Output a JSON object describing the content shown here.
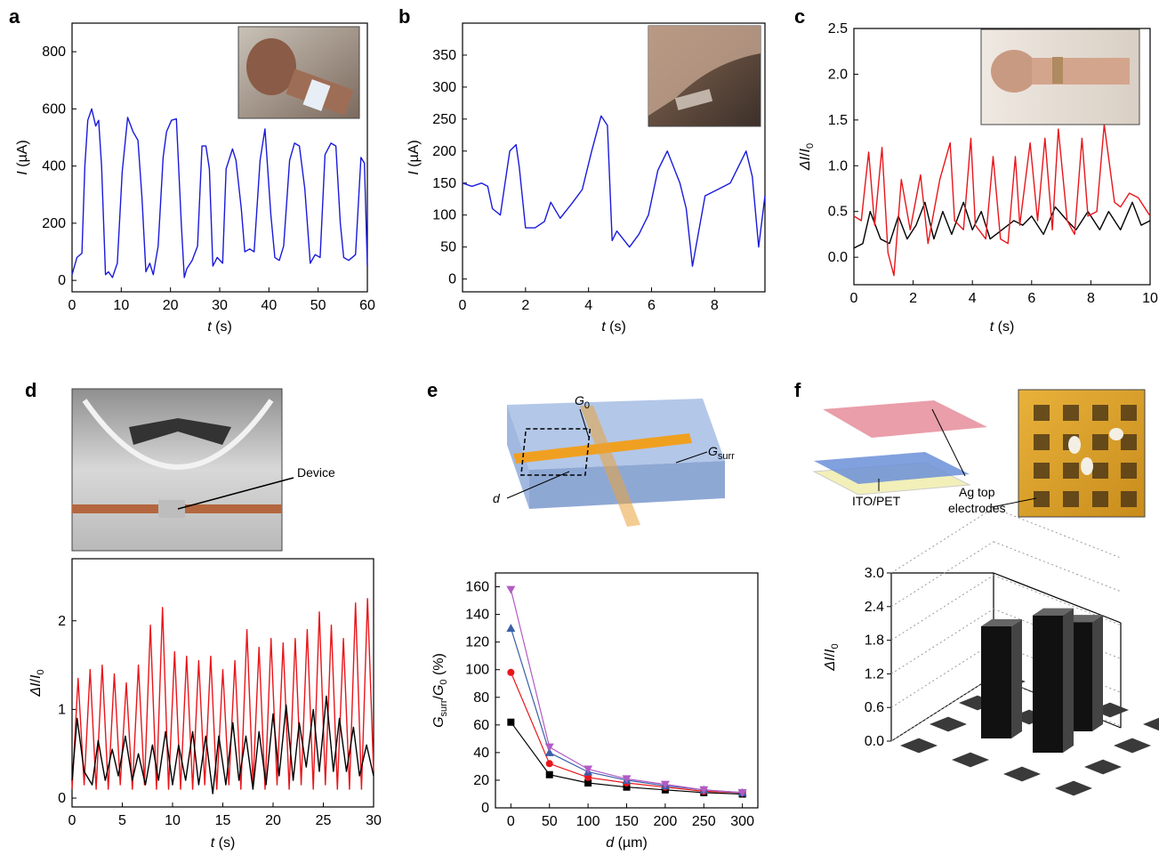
{
  "panel_labels": {
    "a": "a",
    "b": "b",
    "c": "c",
    "d": "d",
    "e": "e",
    "f": "f"
  },
  "annotations": {
    "d_device": "Device",
    "e_G0_main": "G",
    "e_G0_sub": "0",
    "e_Gsurr_main": "G",
    "e_Gsurr_sub": "surr",
    "e_d": "d",
    "f_ito": "ITO/PET",
    "f_ag_line1": "Ag top",
    "f_ag_line2": "electrodes"
  },
  "colors": {
    "blue": "#1a1adb",
    "red": "#e8161b",
    "black": "#000000",
    "purple": "#b25cc4",
    "steelblue": "#3b5ea8",
    "bar": "#111111"
  },
  "chart_data": [
    {
      "id": "a",
      "type": "line",
      "ylabel_main": "I",
      "ylabel_unit": " (µA)",
      "xlabel_main": "t",
      "xlabel_unit": " (s)",
      "xlim": [
        0,
        60
      ],
      "ylim": [
        -40,
        900
      ],
      "xticks": [
        "0",
        "10",
        "20",
        "30",
        "40",
        "50",
        "60"
      ],
      "xtick_values": [
        0,
        10,
        20,
        30,
        40,
        50,
        60
      ],
      "yticks": [
        "0",
        "200",
        "400",
        "600",
        "800"
      ],
      "ytick_values": [
        0,
        200,
        400,
        600,
        800
      ],
      "series": [
        {
          "color": "#1a1adb",
          "x": [
            0,
            1,
            2,
            2.6,
            3.2,
            4,
            4.8,
            5.4,
            6,
            6.8,
            7.4,
            8.2,
            9.2,
            10.2,
            11.3,
            12.4,
            13.4,
            14.2,
            15,
            15.8,
            16.5,
            17.5,
            18.5,
            19.2,
            20.2,
            21.2,
            22.2,
            22.8,
            23.3,
            24.4,
            25.5,
            26.4,
            27.2,
            27.9,
            28.6,
            29.5,
            30.6,
            31.3,
            32.6,
            33.3,
            34.4,
            35.1,
            36.1,
            37,
            38.2,
            39.2,
            40.4,
            41.2,
            42.1,
            43,
            44.2,
            45.2,
            46.2,
            47.3,
            48.4,
            49.4,
            50.4,
            51.4,
            52.6,
            53.6,
            54.5,
            55.2,
            56.2,
            57.6,
            58.7,
            59.4,
            60
          ],
          "y": [
            20,
            80,
            95,
            400,
            560,
            600,
            540,
            560,
            400,
            20,
            30,
            10,
            60,
            380,
            570,
            520,
            490,
            290,
            30,
            60,
            20,
            120,
            430,
            520,
            560,
            565,
            200,
            10,
            40,
            70,
            120,
            470,
            470,
            390,
            50,
            80,
            60,
            390,
            460,
            420,
            250,
            100,
            110,
            100,
            420,
            530,
            230,
            80,
            70,
            120,
            420,
            480,
            470,
            320,
            60,
            90,
            80,
            440,
            480,
            470,
            200,
            80,
            70,
            90,
            430,
            410,
            50
          ]
        }
      ]
    },
    {
      "id": "b",
      "type": "line",
      "ylabel_main": "I",
      "ylabel_unit": " (µA)",
      "xlabel_main": "t",
      "xlabel_unit": " (s)",
      "xlim": [
        0,
        9.6
      ],
      "ylim": [
        -20,
        400
      ],
      "xticks": [
        "0",
        "2",
        "4",
        "6",
        "8"
      ],
      "xtick_values": [
        0,
        2,
        4,
        6,
        8
      ],
      "yticks": [
        "0",
        "50",
        "100",
        "150",
        "200",
        "250",
        "300",
        "350"
      ],
      "ytick_values": [
        0,
        50,
        100,
        150,
        200,
        250,
        300,
        350
      ],
      "series": [
        {
          "color": "#1a1adb",
          "x": [
            0,
            0.3,
            0.6,
            0.8,
            0.95,
            1.2,
            1.5,
            1.7,
            1.8,
            2.0,
            2.3,
            2.6,
            2.8,
            3.1,
            3.5,
            3.8,
            4.1,
            4.4,
            4.6,
            4.75,
            4.9,
            5.3,
            5.6,
            5.9,
            6.2,
            6.5,
            6.9,
            7.1,
            7.3,
            7.7,
            8.1,
            8.5,
            8.8,
            9.0,
            9.2,
            9.4,
            9.6
          ],
          "y": [
            150,
            145,
            150,
            145,
            110,
            100,
            200,
            210,
            175,
            80,
            80,
            90,
            120,
            95,
            120,
            140,
            200,
            255,
            240,
            60,
            75,
            50,
            70,
            100,
            170,
            200,
            150,
            110,
            20,
            130,
            140,
            150,
            180,
            200,
            160,
            50,
            130
          ]
        }
      ]
    },
    {
      "id": "c",
      "type": "line",
      "ylabel_main": "ΔI",
      "ylabel_unit": "",
      "ylabel_sub": "0",
      "xlabel_main": "t",
      "xlabel_unit": " (s)",
      "xlim": [
        0,
        10
      ],
      "ylim": [
        -0.3,
        2.5
      ],
      "xticks": [
        "0",
        "2",
        "4",
        "6",
        "8",
        "10"
      ],
      "xtick_values": [
        0,
        2,
        4,
        6,
        8,
        10
      ],
      "yticks": [
        "0.0",
        "0.5",
        "1.0",
        "1.5",
        "2.0",
        "2.5"
      ],
      "ytick_values": [
        0,
        0.5,
        1,
        1.5,
        2,
        2.5
      ],
      "series": [
        {
          "color": "#000000",
          "x": [
            0,
            0.3,
            0.55,
            0.9,
            1.2,
            1.5,
            1.8,
            2.1,
            2.4,
            2.7,
            3.0,
            3.3,
            3.7,
            4.0,
            4.3,
            4.6,
            5.0,
            5.4,
            5.7,
            6.0,
            6.4,
            6.8,
            7.2,
            7.5,
            7.9,
            8.3,
            8.6,
            9.0,
            9.4,
            9.7,
            10
          ],
          "y": [
            0.1,
            0.15,
            0.5,
            0.2,
            0.15,
            0.45,
            0.2,
            0.35,
            0.6,
            0.2,
            0.5,
            0.25,
            0.6,
            0.3,
            0.5,
            0.2,
            0.3,
            0.4,
            0.35,
            0.45,
            0.25,
            0.55,
            0.4,
            0.3,
            0.5,
            0.3,
            0.5,
            0.3,
            0.6,
            0.35,
            0.4
          ]
        },
        {
          "color": "#e8161b",
          "x": [
            0,
            0.25,
            0.5,
            0.7,
            0.95,
            1.15,
            1.35,
            1.6,
            1.9,
            2.25,
            2.5,
            2.9,
            3.25,
            3.4,
            3.7,
            3.95,
            4.1,
            4.45,
            4.7,
            4.95,
            5.2,
            5.45,
            5.6,
            5.95,
            6.2,
            6.45,
            6.7,
            6.9,
            7.2,
            7.45,
            7.7,
            7.9,
            8.2,
            8.45,
            8.8,
            9.0,
            9.3,
            9.6,
            10
          ],
          "y": [
            0.45,
            0.4,
            1.15,
            0.35,
            1.2,
            0.05,
            -0.2,
            0.85,
            0.3,
            0.9,
            0.15,
            0.85,
            1.25,
            0.4,
            0.3,
            1.3,
            0.35,
            0.2,
            1.1,
            0.2,
            0.15,
            1.1,
            0.35,
            1.25,
            0.4,
            1.3,
            0.3,
            1.4,
            0.4,
            0.25,
            1.3,
            0.45,
            0.5,
            1.45,
            0.6,
            0.55,
            0.7,
            0.65,
            0.45
          ]
        }
      ]
    },
    {
      "id": "d",
      "type": "line",
      "ylabel_main": "ΔI",
      "ylabel_unit": "",
      "ylabel_sub": "0",
      "xlabel_main": "t",
      "xlabel_unit": " (s)",
      "xlim": [
        0,
        30
      ],
      "ylim": [
        -0.1,
        2.7
      ],
      "xticks": [
        "0",
        "5",
        "10",
        "15",
        "20",
        "25",
        "30"
      ],
      "xtick_values": [
        0,
        5,
        10,
        15,
        20,
        25,
        30
      ],
      "yticks": [
        "0",
        "1",
        "2"
      ],
      "ytick_values": [
        0,
        1,
        2
      ],
      "series": [
        {
          "color": "#e8161b",
          "x": [
            0,
            0.6,
            1.2,
            1.8,
            2.4,
            3.0,
            3.6,
            4.2,
            4.8,
            5.4,
            6.0,
            6.6,
            7.2,
            7.8,
            8.4,
            9.0,
            9.6,
            10.2,
            10.8,
            11.4,
            12.0,
            12.6,
            13.2,
            13.8,
            14.4,
            15.0,
            15.6,
            16.2,
            16.8,
            17.4,
            18.0,
            18.6,
            19.2,
            19.8,
            20.4,
            21.0,
            21.6,
            22.2,
            22.8,
            23.4,
            24.0,
            24.6,
            25.2,
            25.8,
            26.4,
            27.0,
            27.6,
            28.2,
            28.8,
            29.4,
            30
          ],
          "y": [
            0.1,
            1.35,
            0.15,
            1.45,
            0.1,
            1.5,
            0.1,
            1.4,
            0.15,
            1.3,
            0.1,
            1.5,
            0.15,
            1.95,
            0.1,
            2.15,
            0.1,
            1.65,
            0.1,
            1.6,
            0.1,
            1.55,
            0.15,
            1.6,
            0.1,
            1.45,
            0.15,
            1.55,
            0.1,
            1.9,
            0.15,
            1.7,
            0.1,
            1.8,
            0.15,
            1.75,
            0.1,
            1.8,
            0.15,
            1.9,
            0.1,
            2.1,
            0.15,
            1.95,
            0.1,
            1.8,
            0.1,
            2.2,
            0.1,
            2.25,
            0.3
          ]
        },
        {
          "color": "#000000",
          "x": [
            0,
            0.5,
            1.2,
            2.0,
            2.6,
            3.3,
            4.0,
            4.6,
            5.3,
            6.0,
            6.6,
            7.3,
            8.0,
            8.6,
            9.3,
            10.0,
            10.6,
            11.3,
            12.0,
            12.6,
            13.3,
            14.0,
            14.6,
            15.3,
            16.0,
            16.6,
            17.3,
            18.0,
            18.6,
            19.3,
            20.0,
            20.6,
            21.3,
            22.0,
            22.6,
            23.3,
            24.0,
            24.6,
            25.3,
            26.0,
            26.6,
            27.3,
            28.0,
            28.6,
            29.3,
            30
          ],
          "y": [
            0.2,
            0.9,
            0.3,
            0.15,
            0.65,
            0.2,
            0.55,
            0.25,
            0.7,
            0.2,
            0.5,
            0.15,
            0.6,
            0.2,
            0.75,
            0.15,
            0.6,
            0.2,
            0.75,
            0.15,
            0.7,
            0.05,
            0.7,
            0.15,
            0.85,
            0.2,
            0.7,
            0.1,
            0.75,
            0.15,
            0.95,
            0.25,
            1.05,
            0.2,
            0.85,
            0.35,
            1.0,
            0.3,
            1.15,
            0.3,
            0.9,
            0.3,
            0.8,
            0.25,
            0.6,
            0.25
          ]
        }
      ]
    },
    {
      "id": "e",
      "type": "scatter",
      "ylabel_main": "G",
      "ylabel_unit": " (%)",
      "xlabel_main": "d",
      "xlabel_unit": " (µm)",
      "xlim": [
        -20,
        320
      ],
      "ylim": [
        0,
        170
      ],
      "xticks": [
        "0",
        "50",
        "100",
        "150",
        "200",
        "250",
        "300"
      ],
      "xtick_values": [
        0,
        50,
        100,
        150,
        200,
        250,
        300
      ],
      "yticks": [
        "0",
        "20",
        "40",
        "60",
        "80",
        "100",
        "120",
        "140",
        "160"
      ],
      "ytick_values": [
        0,
        20,
        40,
        60,
        80,
        100,
        120,
        140,
        160
      ],
      "x": [
        0,
        50,
        100,
        150,
        200,
        250,
        300
      ],
      "series": [
        {
          "color": "#000000",
          "marker": "square",
          "values": [
            62,
            24,
            18,
            15,
            13,
            11,
            10
          ]
        },
        {
          "color": "#e8161b",
          "marker": "circle",
          "values": [
            98,
            32,
            22,
            18,
            15,
            12,
            11
          ]
        },
        {
          "color": "#3b5ea8",
          "marker": "triangle-up",
          "values": [
            130,
            40,
            26,
            20,
            16,
            13,
            11
          ]
        },
        {
          "color": "#b25cc4",
          "marker": "triangle-down",
          "values": [
            158,
            44,
            28,
            21,
            17,
            13,
            11
          ]
        }
      ]
    },
    {
      "id": "f",
      "type": "bar3d",
      "ylabel_main": "ΔI",
      "ylabel_unit": "",
      "ylabel_sub": "0",
      "zlim": [
        0,
        3.0
      ],
      "yticks": [
        "0.0",
        "0.6",
        "1.2",
        "1.8",
        "2.4",
        "3.0"
      ],
      "ytick_values": [
        0,
        0.6,
        1.2,
        1.8,
        2.4,
        3.0
      ],
      "grid": {
        "rows": 4,
        "cols": 4
      },
      "values": [
        [
          0,
          0,
          0,
          0
        ],
        [
          0,
          2.0,
          2.45,
          0
        ],
        [
          0,
          0,
          1.95,
          0
        ],
        [
          0,
          0,
          0,
          0
        ]
      ]
    }
  ]
}
